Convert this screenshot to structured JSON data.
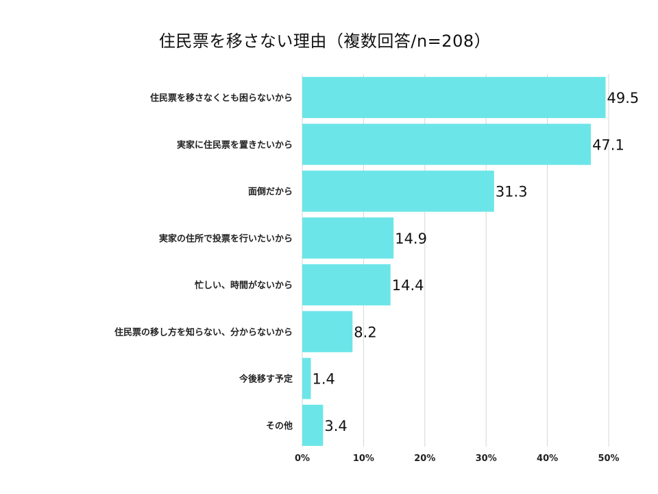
{
  "chart_data": {
    "type": "bar",
    "orientation": "horizontal",
    "title": "住民票を移さない理由（複数回答/n=208）",
    "xlabel": "",
    "ylabel": "",
    "unit": "%",
    "xlim": [
      0,
      50
    ],
    "grid": true,
    "bar_color": "#6ce5e8",
    "categories": [
      "住民票を移さなくとも困らないから",
      "実家に住民票を置きたいから",
      "面倒だから",
      "実家の住所で投票を行いたいから",
      "忙しい、時間がないから",
      "住民票の移し方を知らない、分からないから",
      "今後移す予定",
      "その他"
    ],
    "values": [
      49.5,
      47.1,
      31.3,
      14.9,
      14.4,
      8.2,
      1.4,
      3.4
    ],
    "value_labels": [
      "49.5",
      "47.1",
      "31.3",
      "14.9",
      "14.4",
      "8.2",
      "1.4",
      "3.4"
    ],
    "ticks": [
      0,
      10,
      20,
      30,
      40,
      50
    ],
    "tick_labels": [
      "0%",
      "10%",
      "20%",
      "30%",
      "40%",
      "50%"
    ]
  }
}
